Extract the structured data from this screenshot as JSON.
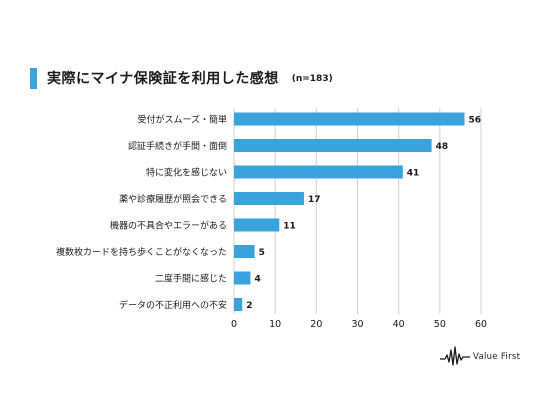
{
  "header": {
    "accent_color": "#3aa3dc",
    "title": "実際にマイナ保険証を利用した感想",
    "sample": "(n=183)"
  },
  "chart_data": {
    "type": "bar",
    "orientation": "horizontal",
    "title": "実際にマイナ保険証を利用した感想",
    "subtitle": "(n=183)",
    "categories": [
      "受付がスムーズ・簡単",
      "認証手続きが手間・面倒",
      "特に変化を感じない",
      "薬や診療履歴が照会できる",
      "機器の不具合やエラーがある",
      "複数枚カードを持ち歩くことがなくなった",
      "二度手間に感じた",
      "データの不正利用への不安"
    ],
    "values": [
      56,
      48,
      41,
      17,
      11,
      5,
      4,
      2
    ],
    "xlim": [
      0,
      60
    ],
    "x_ticks": [
      0,
      10,
      20,
      30,
      40,
      50,
      60
    ],
    "grid": true,
    "bar_color": "#3aa3dc",
    "grid_color": "#d0d0d0"
  },
  "logo": {
    "text": "Value First",
    "icon": "waveform-logo-icon"
  }
}
